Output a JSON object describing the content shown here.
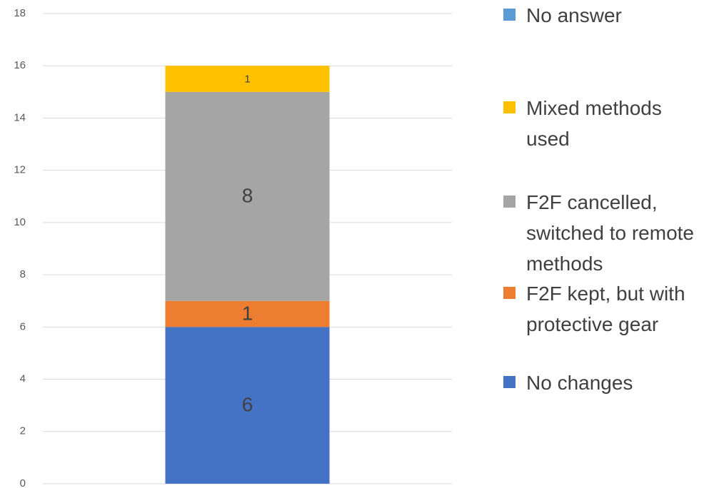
{
  "chart_data": {
    "type": "bar",
    "stacked": true,
    "categories": [
      null
    ],
    "series": [
      {
        "name": "No changes",
        "color": "#4472c4",
        "values": [
          6
        ]
      },
      {
        "name": "F2F kept, but with protective gear",
        "color": "#ed7d31",
        "values": [
          1
        ]
      },
      {
        "name": "F2F cancelled, switched to remote methods",
        "color": "#a5a5a5",
        "values": [
          8
        ]
      },
      {
        "name": "Mixed methods used",
        "color": "#ffc000",
        "values": [
          1
        ]
      },
      {
        "name": "No answer",
        "color": "#5b9bd5",
        "values": [
          0
        ]
      }
    ],
    "ylim": [
      0,
      18
    ],
    "yticks": [
      0,
      2,
      4,
      6,
      8,
      10,
      12,
      14,
      16,
      18
    ],
    "grid": true,
    "legend": "right"
  }
}
